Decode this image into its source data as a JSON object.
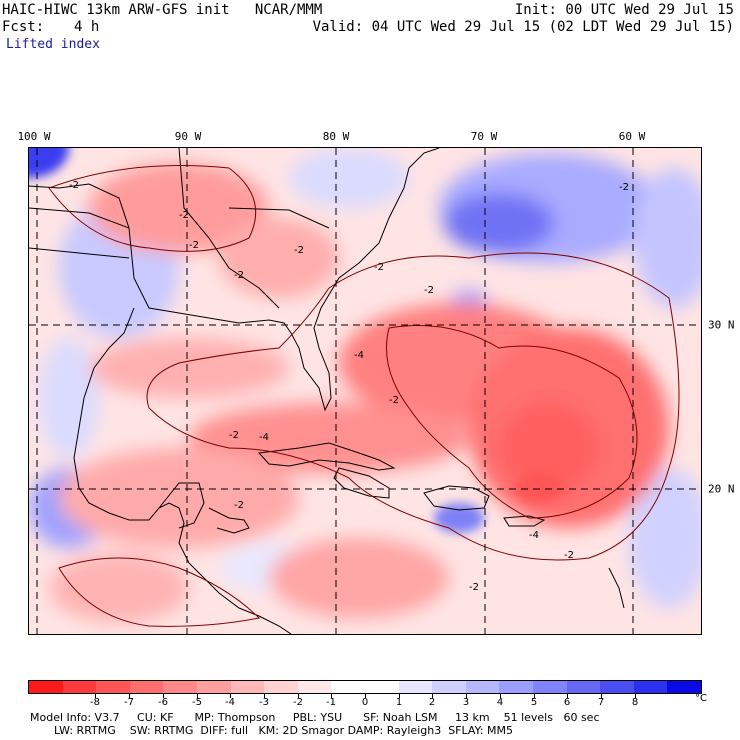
{
  "header": {
    "model_title": "HAIC-HIWC 13km ARW-GFS init   NCAR/MMM",
    "init": "Init: 00 UTC Wed 29 Jul 15",
    "fcst_label": "Fcst:",
    "fcst_value": "4 h",
    "valid": "Valid: 04 UTC Wed 29 Jul 15 (02 LDT Wed 29 Jul 15)",
    "field": "Lifted index"
  },
  "map": {
    "lon_labels": [
      "100 W",
      "90 W",
      "80 W",
      "70 W",
      "60 W"
    ],
    "lat_labels": [
      "30 N",
      "20 N"
    ],
    "contour_labels": [
      "-2",
      "-4"
    ]
  },
  "colorbar": {
    "colors": [
      "#ff1a1a",
      "#ff3a3a",
      "#ff5555",
      "#ff6e6e",
      "#ff8888",
      "#ffa0a0",
      "#ffb8b8",
      "#ffd2d2",
      "#ffe8e8",
      "#ffffff",
      "#ffffff",
      "#e6e6ff",
      "#cfd0ff",
      "#b5b7ff",
      "#9c9eff",
      "#8183fa",
      "#6568f2",
      "#4a4ef0",
      "#2c30f0",
      "#0a0ae6"
    ],
    "tick_labels": [
      "-8",
      "-7",
      "-6",
      "-5",
      "-4",
      "-3",
      "-2",
      "-1",
      "0",
      "1",
      "2",
      "3",
      "4",
      "5",
      "6",
      "7",
      "8"
    ],
    "unit": "°C"
  },
  "model_info": {
    "line1": "Model Info: V3.7     CU: KF      MP: Thompson     PBL: YSU      SF: Noah LSM     13 km    51 levels   60 sec",
    "line2": "LW: RRTMG    SW: RRTMG  DIFF: full   KM: 2D Smagor DAMP: Rayleigh3  SFLAY: MM5"
  }
}
